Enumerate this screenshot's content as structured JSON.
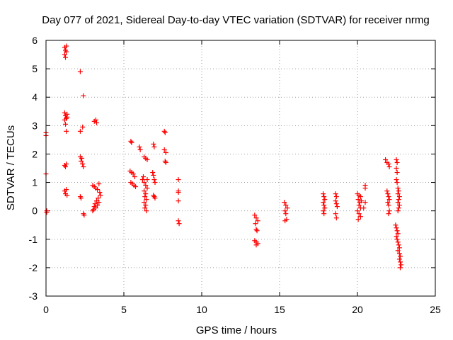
{
  "chart_data": {
    "type": "scatter",
    "title": "Day 077 of 2021, Sidereal Day-to-day VTEC variation (SDTVAR) for receiver nrmg",
    "xlabel": "GPS time / hours",
    "ylabel": "SDTVAR / TECUs",
    "xlim": [
      0,
      25
    ],
    "ylim": [
      -3,
      6
    ],
    "xticks": [
      0,
      5,
      10,
      15,
      20,
      25
    ],
    "yticks": [
      -3,
      -2,
      -1,
      0,
      1,
      2,
      3,
      4,
      5,
      6
    ],
    "grid": true,
    "marker": "plus",
    "color": "#ff0000",
    "series": [
      {
        "name": "SDTVAR",
        "points": [
          [
            0.0,
            2.75
          ],
          [
            0.0,
            2.65
          ],
          [
            0.0,
            1.3
          ],
          [
            0.05,
            0.0
          ],
          [
            0.05,
            -0.05
          ],
          [
            1.2,
            5.75
          ],
          [
            1.25,
            5.65
          ],
          [
            1.3,
            5.6
          ],
          [
            1.2,
            5.5
          ],
          [
            1.25,
            5.4
          ],
          [
            1.3,
            5.8
          ],
          [
            1.2,
            3.45
          ],
          [
            1.25,
            3.35
          ],
          [
            1.3,
            3.25
          ],
          [
            1.35,
            3.4
          ],
          [
            1.2,
            3.2
          ],
          [
            1.25,
            3.05
          ],
          [
            1.3,
            2.8
          ],
          [
            1.35,
            3.3
          ],
          [
            1.2,
            1.6
          ],
          [
            1.25,
            1.55
          ],
          [
            1.3,
            1.65
          ],
          [
            1.2,
            0.7
          ],
          [
            1.25,
            0.6
          ],
          [
            1.3,
            0.75
          ],
          [
            1.35,
            0.55
          ],
          [
            2.2,
            4.9
          ],
          [
            2.4,
            4.05
          ],
          [
            2.35,
            2.95
          ],
          [
            2.2,
            2.8
          ],
          [
            2.2,
            1.9
          ],
          [
            2.3,
            1.85
          ],
          [
            2.25,
            1.75
          ],
          [
            2.35,
            1.65
          ],
          [
            2.4,
            1.55
          ],
          [
            2.2,
            0.5
          ],
          [
            2.25,
            0.45
          ],
          [
            2.4,
            -0.1
          ],
          [
            2.45,
            -0.15
          ],
          [
            3.1,
            3.15
          ],
          [
            3.2,
            3.2
          ],
          [
            3.25,
            3.1
          ],
          [
            3.0,
            0.9
          ],
          [
            3.1,
            0.85
          ],
          [
            3.2,
            0.8
          ],
          [
            3.3,
            0.75
          ],
          [
            3.4,
            0.95
          ],
          [
            3.45,
            0.65
          ],
          [
            3.5,
            0.55
          ],
          [
            3.35,
            0.45
          ],
          [
            3.25,
            0.35
          ],
          [
            3.15,
            0.25
          ],
          [
            3.1,
            0.15
          ],
          [
            3.05,
            0.05
          ],
          [
            3.2,
            0.1
          ],
          [
            3.3,
            0.2
          ],
          [
            3.4,
            0.3
          ],
          [
            3.0,
            0.0
          ],
          [
            5.45,
            2.45
          ],
          [
            5.5,
            2.4
          ],
          [
            5.4,
            1.4
          ],
          [
            5.5,
            1.35
          ],
          [
            5.6,
            1.3
          ],
          [
            5.7,
            1.2
          ],
          [
            5.45,
            1.0
          ],
          [
            5.55,
            0.95
          ],
          [
            5.65,
            0.9
          ],
          [
            5.75,
            0.85
          ],
          [
            6.0,
            2.25
          ],
          [
            6.05,
            2.15
          ],
          [
            6.3,
            1.9
          ],
          [
            6.4,
            1.85
          ],
          [
            6.5,
            1.8
          ],
          [
            6.2,
            1.1
          ],
          [
            6.3,
            1.0
          ],
          [
            6.4,
            0.9
          ],
          [
            6.5,
            0.8
          ],
          [
            6.3,
            0.7
          ],
          [
            6.4,
            0.6
          ],
          [
            6.35,
            0.5
          ],
          [
            6.45,
            0.4
          ],
          [
            6.3,
            0.3
          ],
          [
            6.4,
            0.2
          ],
          [
            6.35,
            0.1
          ],
          [
            6.45,
            0.0
          ],
          [
            6.25,
            1.2
          ],
          [
            6.5,
            1.1
          ],
          [
            6.9,
            2.35
          ],
          [
            6.95,
            2.25
          ],
          [
            6.85,
            1.35
          ],
          [
            6.9,
            1.25
          ],
          [
            6.95,
            1.1
          ],
          [
            7.0,
            1.0
          ],
          [
            6.9,
            0.55
          ],
          [
            6.95,
            0.5
          ],
          [
            7.0,
            0.45
          ],
          [
            7.6,
            2.8
          ],
          [
            7.65,
            2.75
          ],
          [
            7.6,
            2.15
          ],
          [
            7.7,
            2.05
          ],
          [
            7.65,
            1.75
          ],
          [
            7.7,
            1.7
          ],
          [
            8.5,
            1.1
          ],
          [
            8.5,
            0.7
          ],
          [
            8.5,
            0.65
          ],
          [
            8.5,
            0.35
          ],
          [
            8.5,
            -0.35
          ],
          [
            8.55,
            -0.45
          ],
          [
            13.4,
            -0.15
          ],
          [
            13.5,
            -0.25
          ],
          [
            13.6,
            -0.35
          ],
          [
            13.45,
            -0.45
          ],
          [
            13.5,
            -0.65
          ],
          [
            13.55,
            -0.7
          ],
          [
            13.4,
            -1.05
          ],
          [
            13.5,
            -1.1
          ],
          [
            13.6,
            -1.15
          ],
          [
            13.5,
            -1.2
          ],
          [
            15.3,
            0.3
          ],
          [
            15.4,
            0.2
          ],
          [
            15.5,
            0.1
          ],
          [
            15.35,
            0.0
          ],
          [
            15.4,
            -0.1
          ],
          [
            15.45,
            -0.3
          ],
          [
            15.35,
            -0.35
          ],
          [
            17.8,
            0.6
          ],
          [
            17.85,
            0.5
          ],
          [
            17.9,
            0.4
          ],
          [
            17.8,
            0.3
          ],
          [
            17.85,
            0.2
          ],
          [
            17.9,
            0.1
          ],
          [
            17.8,
            0.0
          ],
          [
            17.85,
            -0.1
          ],
          [
            18.6,
            0.6
          ],
          [
            18.65,
            0.5
          ],
          [
            18.6,
            0.35
          ],
          [
            18.65,
            0.25
          ],
          [
            18.7,
            0.15
          ],
          [
            18.6,
            -0.1
          ],
          [
            18.65,
            -0.25
          ],
          [
            20.0,
            0.6
          ],
          [
            20.1,
            0.55
          ],
          [
            20.2,
            0.5
          ],
          [
            20.05,
            0.4
          ],
          [
            20.15,
            0.3
          ],
          [
            20.25,
            0.35
          ],
          [
            20.1,
            0.2
          ],
          [
            20.2,
            0.1
          ],
          [
            20.0,
            0.0
          ],
          [
            20.1,
            -0.1
          ],
          [
            20.2,
            -0.2
          ],
          [
            20.05,
            -0.3
          ],
          [
            20.5,
            0.9
          ],
          [
            20.5,
            0.8
          ],
          [
            20.5,
            0.3
          ],
          [
            20.4,
            0.1
          ],
          [
            21.8,
            1.8
          ],
          [
            21.9,
            1.7
          ],
          [
            22.0,
            1.65
          ],
          [
            22.05,
            1.55
          ],
          [
            21.9,
            0.7
          ],
          [
            21.95,
            0.6
          ],
          [
            22.0,
            0.5
          ],
          [
            22.05,
            0.4
          ],
          [
            21.95,
            0.3
          ],
          [
            22.0,
            0.2
          ],
          [
            22.05,
            0.0
          ],
          [
            22.0,
            -0.1
          ],
          [
            22.5,
            1.8
          ],
          [
            22.55,
            1.7
          ],
          [
            22.5,
            1.5
          ],
          [
            22.55,
            1.35
          ],
          [
            22.5,
            1.1
          ],
          [
            22.55,
            1.0
          ],
          [
            22.6,
            0.8
          ],
          [
            22.65,
            0.7
          ],
          [
            22.6,
            0.6
          ],
          [
            22.7,
            0.5
          ],
          [
            22.65,
            0.4
          ],
          [
            22.6,
            0.3
          ],
          [
            22.7,
            0.2
          ],
          [
            22.65,
            0.1
          ],
          [
            22.6,
            0.0
          ],
          [
            22.45,
            -0.5
          ],
          [
            22.5,
            -0.6
          ],
          [
            22.55,
            -0.7
          ],
          [
            22.6,
            -0.8
          ],
          [
            22.5,
            -0.9
          ],
          [
            22.55,
            -1.0
          ],
          [
            22.6,
            -1.1
          ],
          [
            22.65,
            -1.2
          ],
          [
            22.7,
            -1.3
          ],
          [
            22.6,
            -1.4
          ],
          [
            22.7,
            -1.5
          ],
          [
            22.75,
            -1.6
          ],
          [
            22.7,
            -1.7
          ],
          [
            22.75,
            -1.8
          ],
          [
            22.8,
            -1.9
          ],
          [
            22.75,
            -2.0
          ]
        ]
      }
    ]
  }
}
